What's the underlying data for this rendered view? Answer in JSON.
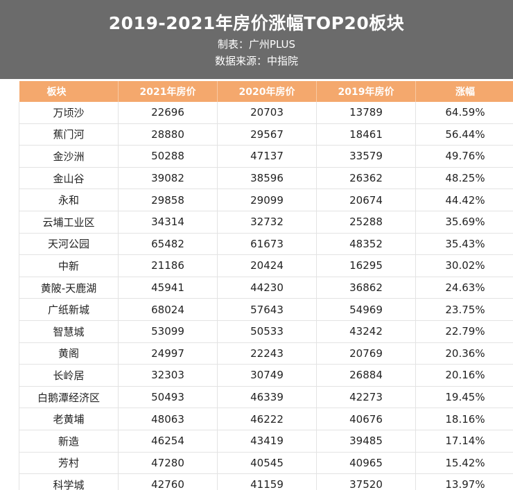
{
  "header": {
    "title": "2019-2021年房价涨幅TOP20板块",
    "maker": "制表：广州PLUS",
    "source": "数据来源：中指院"
  },
  "colors": {
    "header_bg": "#6b6b6b",
    "table_header_bg": "#f4a86d",
    "grid": "#e3e3e3"
  },
  "table": {
    "columns": [
      "板块",
      "2021年房价",
      "2020年房价",
      "2019年房价",
      "涨幅"
    ],
    "rows": [
      [
        "万顷沙",
        "22696",
        "20703",
        "13789",
        "64.59%"
      ],
      [
        "蕉门河",
        "28880",
        "29567",
        "18461",
        "56.44%"
      ],
      [
        "金沙洲",
        "50288",
        "47137",
        "33579",
        "49.76%"
      ],
      [
        "金山谷",
        "39082",
        "38596",
        "26362",
        "48.25%"
      ],
      [
        "永和",
        "29858",
        "29099",
        "20674",
        "44.42%"
      ],
      [
        "云埔工业区",
        "34314",
        "32732",
        "25288",
        "35.69%"
      ],
      [
        "天河公园",
        "65482",
        "61673",
        "48352",
        "35.43%"
      ],
      [
        "中新",
        "21186",
        "20424",
        "16295",
        "30.02%"
      ],
      [
        "黄陂-天鹿湖",
        "45941",
        "44230",
        "36862",
        "24.63%"
      ],
      [
        "广纸新城",
        "68024",
        "57643",
        "54969",
        "23.75%"
      ],
      [
        "智慧城",
        "53099",
        "50533",
        "43242",
        "22.79%"
      ],
      [
        "黄阁",
        "24997",
        "22243",
        "20769",
        "20.36%"
      ],
      [
        "长岭居",
        "32303",
        "30749",
        "26884",
        "20.16%"
      ],
      [
        "白鹅潭经济区",
        "50493",
        "46339",
        "42273",
        "19.45%"
      ],
      [
        "老黄埔",
        "48063",
        "46222",
        "40676",
        "18.16%"
      ],
      [
        "新造",
        "46254",
        "43419",
        "39485",
        "17.14%"
      ],
      [
        "芳村",
        "47280",
        "40545",
        "40965",
        "15.42%"
      ],
      [
        "科学城",
        "42760",
        "41159",
        "37520",
        "13.97%"
      ]
    ]
  }
}
